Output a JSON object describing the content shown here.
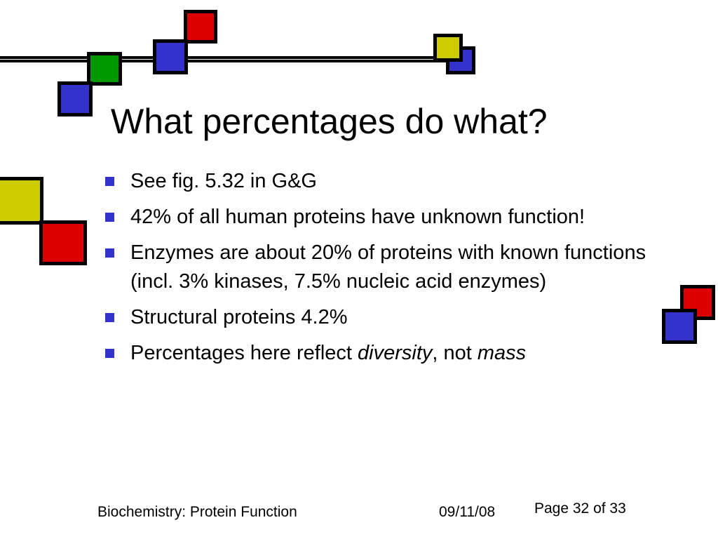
{
  "slide": {
    "title": "What percentages do what?",
    "bullets": [
      {
        "parts": [
          {
            "text": "See fig. 5.32 in G&G",
            "style": "normal"
          }
        ]
      },
      {
        "parts": [
          {
            "text": "42% of all human proteins have unknown function!",
            "style": "normal"
          }
        ]
      },
      {
        "parts": [
          {
            "text": "Enzymes are about 20% of proteins with known functions (incl. 3% kinases, 7.5% nucleic acid enzymes)",
            "style": "normal"
          }
        ]
      },
      {
        "parts": [
          {
            "text": "Structural proteins 4.2%",
            "style": "normal"
          }
        ]
      },
      {
        "parts": [
          {
            "text": "Percentages here reflect ",
            "style": "normal"
          },
          {
            "text": "diversity",
            "style": "italic"
          },
          {
            "text": ", not ",
            "style": "normal"
          },
          {
            "text": "mass",
            "style": "italic"
          }
        ]
      }
    ],
    "footer": {
      "course": "Biochemistry: Protein Function",
      "date": "09/11/08",
      "page": "Page 32 of 33"
    }
  },
  "decor": {
    "colors": {
      "red": "#dd0000",
      "blue": "#3333cc",
      "green": "#009900",
      "yellow": "#cccc00",
      "bullet": "#3333cc"
    }
  }
}
